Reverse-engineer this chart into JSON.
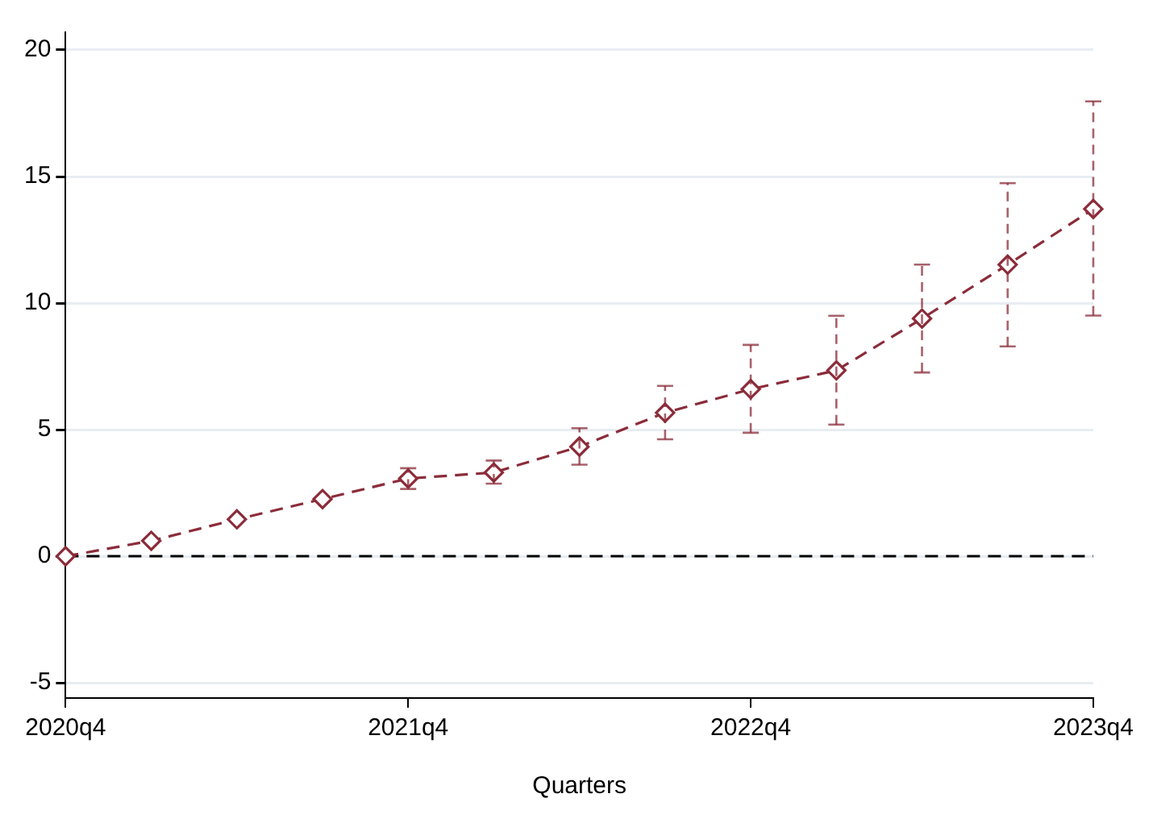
{
  "chart_data": {
    "type": "line",
    "xlabel": "Quarters",
    "categories": [
      "2020q4",
      null,
      null,
      null,
      "2021q4",
      null,
      null,
      null,
      "2022q4",
      null,
      null,
      null,
      "2023q4"
    ],
    "series": [
      {
        "color": "#8b2c3a",
        "values": [
          0,
          0.61,
          1.46,
          2.26,
          3.07,
          3.31,
          4.33,
          5.67,
          6.6,
          7.34,
          9.39,
          11.52,
          13.72
        ],
        "errors": [
          null,
          null,
          null,
          null,
          [
            2.66,
            3.48
          ],
          [
            2.87,
            3.78
          ],
          [
            3.62,
            5.06
          ],
          [
            4.62,
            6.73
          ],
          [
            4.88,
            8.35
          ],
          [
            5.2,
            9.5
          ],
          [
            7.26,
            11.52
          ],
          [
            8.29,
            14.74
          ],
          [
            9.51,
            17.97
          ]
        ]
      }
    ],
    "ylim": [
      -5.6,
      20.7
    ],
    "yticks": [
      -5,
      0,
      5,
      10,
      15,
      20
    ],
    "grid": "y",
    "marker": "diamond",
    "line_style": "dashed",
    "ref_lines": [
      {
        "axis": "y",
        "value": 0,
        "color": "#000000",
        "line_style": "dashed"
      }
    ]
  }
}
